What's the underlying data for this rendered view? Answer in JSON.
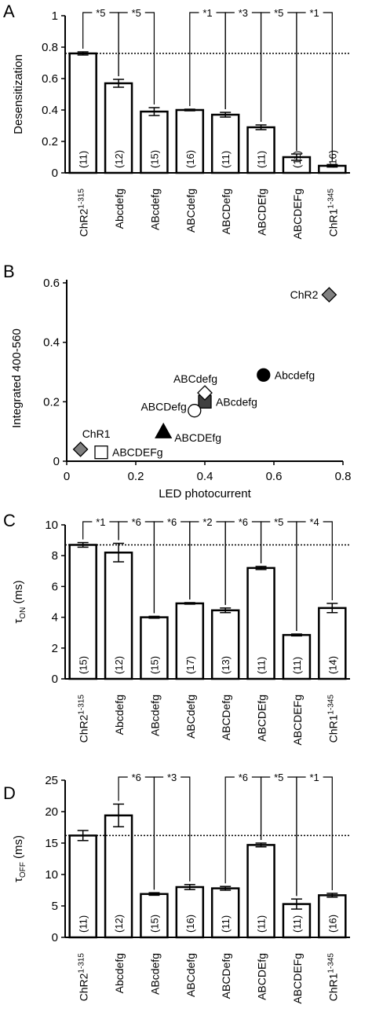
{
  "panels": [
    {
      "letter": "A",
      "type": "bar",
      "ylabel": "Desensitization",
      "ylim": [
        0,
        1
      ],
      "yticks": [
        "0",
        "0.2",
        "0.4",
        "0.6",
        "0.8",
        "1"
      ],
      "reference_line": 0.76,
      "categories": [
        "ChR2",
        "Abcdefg",
        "ABcdefg",
        "ABCdefg",
        "ABCDefg",
        "ABCDEfg",
        "ABCDEFg",
        "ChR1"
      ],
      "category_superscripts": [
        "1-315",
        "",
        "",
        "",
        "",
        "",
        "",
        "1-345"
      ],
      "values": [
        0.76,
        0.57,
        0.39,
        0.4,
        0.37,
        0.29,
        0.1,
        0.045
      ],
      "errors": [
        0.01,
        0.025,
        0.025,
        0.005,
        0.015,
        0.015,
        0.02,
        0.008
      ],
      "n_labels": [
        "(11)",
        "(12)",
        "(15)",
        "(16)",
        "(11)",
        "(11)",
        "(11)",
        "(16)"
      ],
      "brackets": [
        {
          "label": "*5",
          "from": 0,
          "to": 1
        },
        {
          "label": "*5",
          "from": 1,
          "to": 2
        },
        {
          "label": "*1",
          "from": 3,
          "to": 4
        },
        {
          "label": "*3",
          "from": 4,
          "to": 5
        },
        {
          "label": "*5",
          "from": 5,
          "to": 6
        },
        {
          "label": "*1",
          "from": 6,
          "to": 7
        }
      ]
    },
    {
      "letter": "B",
      "type": "scatter",
      "xlabel": "LED photocurrent",
      "ylabel": "Integrated 400-560",
      "xlim": [
        0,
        0.8
      ],
      "ylim": [
        0,
        0.6
      ],
      "xticks": [
        "0",
        "0.2",
        "0.4",
        "0.6",
        "0.8"
      ],
      "yticks": [
        "0",
        "0.2",
        "0.4",
        "0.6"
      ],
      "points": [
        {
          "label": "ChR2",
          "x": 0.76,
          "y": 0.56,
          "marker": "diamond",
          "color": "#808080"
        },
        {
          "label": "Abcdefg",
          "x": 0.57,
          "y": 0.29,
          "marker": "circle",
          "color": "#000000"
        },
        {
          "label": "ABcdefg",
          "x": 0.4,
          "y": 0.2,
          "marker": "square",
          "color": "#404040"
        },
        {
          "label": "ABCdefg",
          "x": 0.4,
          "y": 0.23,
          "marker": "diamond",
          "color": "#ffffff"
        },
        {
          "label": "ABCDefg",
          "x": 0.37,
          "y": 0.17,
          "marker": "circle",
          "color": "#ffffff"
        },
        {
          "label": "ABCDEfg",
          "x": 0.28,
          "y": 0.1,
          "marker": "triangle",
          "color": "#000000"
        },
        {
          "label": "ABCDEFg",
          "x": 0.1,
          "y": 0.03,
          "marker": "square",
          "color": "#ffffff"
        },
        {
          "label": "ChR1",
          "x": 0.04,
          "y": 0.04,
          "marker": "diamond",
          "color": "#808080"
        }
      ]
    },
    {
      "letter": "C",
      "type": "bar",
      "ylabel": "τ",
      "ylabel_sub": "ON",
      "ylabel_unit": " (ms)",
      "ylim": [
        0,
        10
      ],
      "yticks": [
        "0",
        "2",
        "4",
        "6",
        "8",
        "10"
      ],
      "reference_line": 8.7,
      "categories": [
        "ChR2",
        "Abcdefg",
        "ABcdefg",
        "ABCdefg",
        "ABCDefg",
        "ABCDEfg",
        "ABCDEFg",
        "ChR1"
      ],
      "category_superscripts": [
        "1-315",
        "",
        "",
        "",
        "",
        "",
        "",
        "1-345"
      ],
      "values": [
        8.7,
        8.2,
        4.0,
        4.9,
        4.45,
        7.2,
        2.85,
        4.6
      ],
      "errors": [
        0.15,
        0.6,
        0.06,
        0.05,
        0.15,
        0.1,
        0.06,
        0.3
      ],
      "n_labels": [
        "(15)",
        "(12)",
        "(15)",
        "(17)",
        "(13)",
        "(11)",
        "(11)",
        "(14)"
      ],
      "brackets": [
        {
          "label": "*1",
          "from": 0,
          "to": 1
        },
        {
          "label": "*6",
          "from": 1,
          "to": 2
        },
        {
          "label": "*6",
          "from": 2,
          "to": 3
        },
        {
          "label": "*2",
          "from": 3,
          "to": 4
        },
        {
          "label": "*6",
          "from": 4,
          "to": 5
        },
        {
          "label": "*5",
          "from": 5,
          "to": 6
        },
        {
          "label": "*4",
          "from": 6,
          "to": 7
        }
      ]
    },
    {
      "letter": "D",
      "type": "bar",
      "ylabel": "τ",
      "ylabel_sub": "OFF",
      "ylabel_unit": " (ms)",
      "ylim": [
        0,
        25
      ],
      "yticks": [
        "0",
        "5",
        "10",
        "15",
        "20",
        "25"
      ],
      "reference_line": 16.2,
      "categories": [
        "ChR2",
        "Abcdefg",
        "ABcdefg",
        "ABCdefg",
        "ABCDefg",
        "ABCDEfg",
        "ABCDEFg",
        "ChR1"
      ],
      "category_superscripts": [
        "1-315",
        "",
        "",
        "",
        "",
        "",
        "",
        "1-345"
      ],
      "values": [
        16.2,
        19.4,
        6.9,
        8.0,
        7.8,
        14.7,
        5.3,
        6.7
      ],
      "errors": [
        0.8,
        1.8,
        0.2,
        0.4,
        0.3,
        0.3,
        0.8,
        0.3
      ],
      "n_labels": [
        "(11)",
        "(12)",
        "(15)",
        "(16)",
        "(11)",
        "(11)",
        "(11)",
        "(16)"
      ],
      "brackets": [
        {
          "label": "*6",
          "from": 1,
          "to": 2
        },
        {
          "label": "*3",
          "from": 2,
          "to": 3
        },
        {
          "label": "*6",
          "from": 4,
          "to": 5
        },
        {
          "label": "*5",
          "from": 5,
          "to": 6
        },
        {
          "label": "*1",
          "from": 6,
          "to": 7
        }
      ]
    }
  ]
}
